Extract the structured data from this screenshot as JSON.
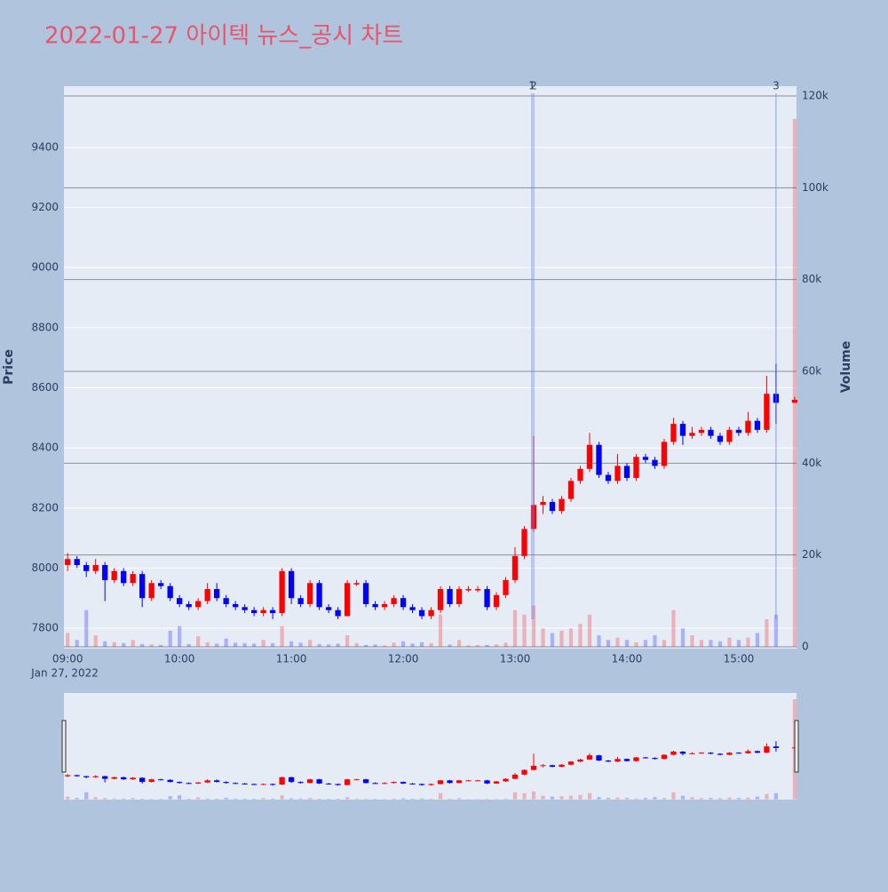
{
  "chart_data": {
    "type": "candlestick",
    "title": "2022-01-27 아이텍 뉴스_공시 차트",
    "y_title": "Price",
    "y2_title": "Volume",
    "date_label": "Jan 27, 2022",
    "up_color": "#ff0000",
    "down_color": "#0000ff",
    "title_color": "#e8546a",
    "grid": true,
    "rangeslider": true,
    "x": [
      "2022-01-27 09:00",
      "2022-01-27 09:05",
      "2022-01-27 09:10",
      "2022-01-27 09:15",
      "2022-01-27 09:20",
      "2022-01-27 09:25",
      "2022-01-27 09:30",
      "2022-01-27 09:35",
      "2022-01-27 09:40",
      "2022-01-27 09:45",
      "2022-01-27 09:50",
      "2022-01-27 09:55",
      "2022-01-27 10:00",
      "2022-01-27 10:05",
      "2022-01-27 10:10",
      "2022-01-27 10:15",
      "2022-01-27 10:20",
      "2022-01-27 10:25",
      "2022-01-27 10:30",
      "2022-01-27 10:35",
      "2022-01-27 10:40",
      "2022-01-27 10:45",
      "2022-01-27 10:50",
      "2022-01-27 10:55",
      "2022-01-27 11:00",
      "2022-01-27 11:05",
      "2022-01-27 11:10",
      "2022-01-27 11:15",
      "2022-01-27 11:20",
      "2022-01-27 11:25",
      "2022-01-27 11:30",
      "2022-01-27 11:35",
      "2022-01-27 11:40",
      "2022-01-27 11:45",
      "2022-01-27 11:50",
      "2022-01-27 11:55",
      "2022-01-27 12:00",
      "2022-01-27 12:05",
      "2022-01-27 12:10",
      "2022-01-27 12:15",
      "2022-01-27 12:20",
      "2022-01-27 12:25",
      "2022-01-27 12:30",
      "2022-01-27 12:35",
      "2022-01-27 12:40",
      "2022-01-27 12:45",
      "2022-01-27 12:50",
      "2022-01-27 12:55",
      "2022-01-27 13:00",
      "2022-01-27 13:05",
      "2022-01-27 13:10",
      "2022-01-27 13:15",
      "2022-01-27 13:20",
      "2022-01-27 13:25",
      "2022-01-27 13:30",
      "2022-01-27 13:35",
      "2022-01-27 13:40",
      "2022-01-27 13:45",
      "2022-01-27 13:50",
      "2022-01-27 13:55",
      "2022-01-27 14:00",
      "2022-01-27 14:05",
      "2022-01-27 14:10",
      "2022-01-27 14:15",
      "2022-01-27 14:20",
      "2022-01-27 14:25",
      "2022-01-27 14:30",
      "2022-01-27 14:35",
      "2022-01-27 14:40",
      "2022-01-27 14:45",
      "2022-01-27 14:50",
      "2022-01-27 14:55",
      "2022-01-27 15:00",
      "2022-01-27 15:05",
      "2022-01-27 15:10",
      "2022-01-27 15:15",
      "2022-01-27 15:20",
      "2022-01-27 15:30"
    ],
    "open": [
      8010,
      8030,
      8010,
      7990,
      8010,
      7960,
      7990,
      7950,
      7980,
      7900,
      7950,
      7940,
      7900,
      7880,
      7870,
      7890,
      7930,
      7900,
      7880,
      7870,
      7860,
      7850,
      7860,
      7850,
      7990,
      7900,
      7880,
      7950,
      7870,
      7860,
      7840,
      7950,
      7950,
      7880,
      7870,
      7880,
      7900,
      7870,
      7860,
      7840,
      7860,
      7930,
      7880,
      7930,
      7930,
      7930,
      7870,
      7910,
      7960,
      8040,
      8130,
      8210,
      8220,
      8190,
      8230,
      8290,
      8330,
      8410,
      8310,
      8290,
      8340,
      8300,
      8370,
      8360,
      8340,
      8420,
      8480,
      8440,
      8450,
      8460,
      8440,
      8420,
      8460,
      8450,
      8490,
      8460,
      8580,
      8550
    ],
    "high": [
      8050,
      8040,
      8020,
      8030,
      8020,
      8000,
      8000,
      7990,
      7990,
      7960,
      7960,
      7950,
      7910,
      7890,
      7900,
      7950,
      7950,
      7910,
      7890,
      7880,
      7870,
      7870,
      7870,
      8000,
      8000,
      7910,
      7960,
      7960,
      7880,
      7870,
      7960,
      7960,
      7960,
      7890,
      7890,
      7910,
      7910,
      7880,
      7870,
      7870,
      7940,
      7940,
      7940,
      7940,
      7940,
      7940,
      7920,
      7970,
      8070,
      8140,
      8440,
      8240,
      8230,
      8240,
      8300,
      8340,
      8450,
      8420,
      8320,
      8380,
      8350,
      8380,
      8380,
      8370,
      8430,
      8500,
      8490,
      8470,
      8470,
      8470,
      8450,
      8470,
      8470,
      8520,
      8500,
      8640,
      8680,
      8570
    ],
    "low": [
      7990,
      8000,
      7970,
      7980,
      7890,
      7950,
      7940,
      7940,
      7870,
      7890,
      7930,
      7890,
      7870,
      7860,
      7860,
      7880,
      7890,
      7870,
      7860,
      7850,
      7840,
      7840,
      7830,
      7840,
      7880,
      7870,
      7870,
      7860,
      7850,
      7830,
      7840,
      7940,
      7870,
      7860,
      7860,
      7870,
      7860,
      7850,
      7830,
      7830,
      7850,
      7870,
      7870,
      7920,
      7920,
      7860,
      7860,
      7900,
      7950,
      8030,
      8120,
      8180,
      8180,
      8180,
      8220,
      8280,
      8320,
      8300,
      8280,
      8280,
      8290,
      8290,
      8350,
      8330,
      8330,
      8410,
      8410,
      8430,
      8440,
      8430,
      8410,
      8410,
      8440,
      8440,
      8450,
      8450,
      8480,
      8550
    ],
    "close": [
      8030,
      8010,
      7990,
      8010,
      7960,
      7990,
      7950,
      7980,
      7900,
      7950,
      7940,
      7900,
      7880,
      7870,
      7890,
      7930,
      7900,
      7880,
      7870,
      7860,
      7850,
      7860,
      7850,
      7990,
      7900,
      7880,
      7950,
      7870,
      7860,
      7840,
      7950,
      7950,
      7880,
      7870,
      7880,
      7900,
      7870,
      7860,
      7840,
      7860,
      7930,
      7880,
      7930,
      7930,
      7930,
      7870,
      7910,
      7960,
      8040,
      8130,
      8210,
      8220,
      8190,
      8230,
      8290,
      8330,
      8410,
      8310,
      8290,
      8340,
      8300,
      8370,
      8360,
      8340,
      8420,
      8480,
      8440,
      8450,
      8460,
      8440,
      8420,
      8460,
      8450,
      8490,
      8460,
      8580,
      8550,
      8560
    ],
    "volume": [
      3000,
      1500,
      8000,
      2500,
      1200,
      1000,
      800,
      1500,
      600,
      500,
      400,
      3500,
      4500,
      600,
      2300,
      1000,
      700,
      1800,
      900,
      800,
      700,
      1500,
      800,
      4500,
      1200,
      900,
      1500,
      600,
      500,
      700,
      2500,
      800,
      400,
      500,
      300,
      900,
      1200,
      700,
      1000,
      800,
      7000,
      500,
      1500,
      300,
      400,
      400,
      500,
      900,
      8000,
      7000,
      9000,
      4000,
      3000,
      3500,
      4000,
      5000,
      7000,
      2500,
      1500,
      2000,
      1500,
      1000,
      1500,
      2500,
      1500,
      8000,
      4000,
      2500,
      1500,
      1500,
      1200,
      2000,
      1500,
      2000,
      3000,
      6000,
      7000,
      115000
    ],
    "xlim": [
      "2022-01-27 08:58",
      "2022-01-27 15:31"
    ],
    "xticks": [
      {
        "value": "2022-01-27 09:00",
        "label": "09:00"
      },
      {
        "value": "2022-01-27 10:00",
        "label": "10:00"
      },
      {
        "value": "2022-01-27 11:00",
        "label": "11:00"
      },
      {
        "value": "2022-01-27 12:00",
        "label": "12:00"
      },
      {
        "value": "2022-01-27 13:00",
        "label": "13:00"
      },
      {
        "value": "2022-01-27 14:00",
        "label": "14:00"
      },
      {
        "value": "2022-01-27 15:00",
        "label": "15:00"
      }
    ],
    "ylim": [
      7732,
      9604
    ],
    "yticks": [
      7800,
      8000,
      8200,
      8400,
      8600,
      8800,
      9000,
      9200,
      9400
    ],
    "y2lim": [
      -387,
      122129
    ],
    "y2ticks": [
      0,
      {
        "value": 20000,
        "label": "20k"
      },
      {
        "value": 40000,
        "label": "40k"
      },
      {
        "value": 60000,
        "label": "60k"
      },
      {
        "value": 80000,
        "label": "80k"
      },
      {
        "value": 100000,
        "label": "100k"
      },
      {
        "value": 120000,
        "label": "120k"
      }
    ],
    "annotations": [
      {
        "x": "2022-01-27 13:09",
        "label": "1"
      },
      {
        "x": "2022-01-27 13:10",
        "label": "2"
      },
      {
        "x": "2022-01-27 15:20",
        "label": "3"
      }
    ]
  }
}
